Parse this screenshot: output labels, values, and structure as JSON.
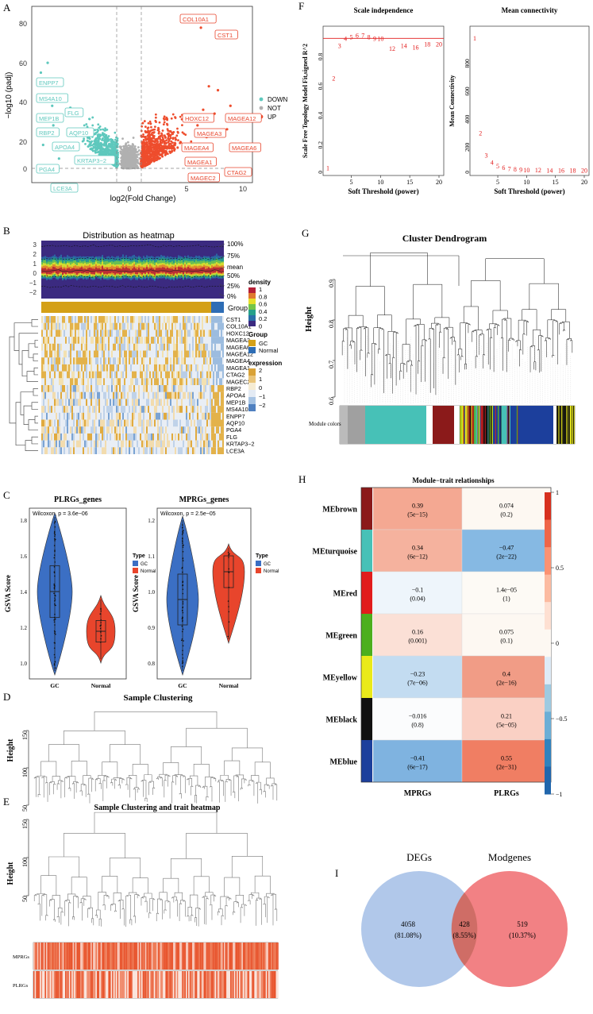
{
  "panels": {
    "A": {
      "letter": "A",
      "xlabel": "log2(Fold Change)",
      "ylabel": "−log10 (padj)",
      "legend": [
        {
          "label": "DOWN",
          "color": "#5ec8bd"
        },
        {
          "label": "NOT",
          "color": "#b0b0b0"
        },
        {
          "label": "UP",
          "color": "#ee4d2d"
        }
      ],
      "down_genes": [
        "ENPP7",
        "MS4A10",
        "FLG",
        "MEP1B",
        "RBP2",
        "AQP10",
        "APOA4",
        "KRTAP3−2",
        "PGA4",
        "LCE3A"
      ],
      "up_genes": [
        "COL10A1",
        "CST1",
        "HOXC12",
        "MAGEA12",
        "MAGEA3",
        "MAGEA4",
        "MAGEA6",
        "MAGEA1",
        "CTAG2",
        "MAGEC2"
      ]
    },
    "B": {
      "letter": "B",
      "title": "Distribution as heatmap",
      "quantiles": [
        "100%",
        "75%",
        "mean",
        "50%",
        "25%",
        "0%"
      ],
      "group_label": "Group",
      "genes": [
        "CST1",
        "COL10A1",
        "HOXC12",
        "MAGEA3",
        "MAGEA6",
        "MAGEA12",
        "MAGEA4",
        "MAGEA1",
        "CTAG2",
        "MAGEC2",
        "RBP2",
        "APOA4",
        "MEP1B",
        "MS4A10",
        "ENPP7",
        "AQP10",
        "PGA4",
        "FLG",
        "KRTAP3−2",
        "LCE3A"
      ],
      "legend_density_title": "density",
      "legend_density_ticks": [
        "1",
        "0.8",
        "0.6",
        "0.4",
        "0.2",
        "0"
      ],
      "legend_group_title": "Group",
      "legend_group_items": [
        {
          "label": "GC",
          "color": "#d4a017"
        },
        {
          "label": "Normal",
          "color": "#2e6db5"
        }
      ],
      "legend_expr_title": "expression",
      "legend_expr_ticks": [
        "2",
        "1",
        "0",
        "−1",
        "−2"
      ]
    },
    "C": {
      "letter": "C",
      "plots": [
        {
          "title": "PLRGs_genes",
          "stat": "Wilcoxon, p = 3.6e−06",
          "ylabel": "GSVA Score",
          "yticks": [
            "1.8",
            "1.6",
            "1.4",
            "1.2",
            "1.0"
          ],
          "xcats": [
            "GC",
            "Normal"
          ]
        },
        {
          "title": "MPRGs_genes",
          "stat": "Wilcoxon, p = 2.5e−05",
          "ylabel": "GSVA Score",
          "yticks": [
            "1.2",
            "1.1",
            "1.0",
            "0.9",
            "0.8"
          ],
          "xcats": [
            "GC",
            "Normal"
          ]
        }
      ],
      "legend_title": "Type",
      "legend_items": [
        {
          "label": "GC",
          "color": "#3b6fc4"
        },
        {
          "label": "Normal",
          "color": "#e8452c"
        }
      ]
    },
    "D": {
      "letter": "D",
      "title": "Sample Clustering",
      "ylabel": "Height",
      "yticks": [
        "150",
        "100",
        "50"
      ]
    },
    "E": {
      "letter": "E",
      "title": "Sample Clustering and trait heatmap",
      "ylabel": "Height",
      "yticks": [
        "150",
        "100",
        "50"
      ],
      "traits": [
        "MPRGs",
        "PLRGs"
      ]
    },
    "F": {
      "letter": "F",
      "left": {
        "title": "Scale independence",
        "ylabel": "Scale Free Topology Model Fit,signed R^2",
        "xlabel": "Soft Threshold (power)",
        "yticks": [
          "0",
          "0.2",
          "0.4",
          "0.6",
          "0.8"
        ],
        "xticks": [
          "5",
          "10",
          "15",
          "20"
        ]
      },
      "right": {
        "title": "Mean connectivity",
        "ylabel": "Mean Connectivity",
        "xlabel": "Soft Threshold (power)",
        "yticks": [
          "0",
          "200",
          "400",
          "600",
          "800"
        ],
        "xticks": [
          "5",
          "10",
          "15",
          "20"
        ]
      },
      "powers": [
        "1",
        "2",
        "3",
        "4",
        "5",
        "6",
        "7",
        "8",
        "9",
        "10",
        "12",
        "14",
        "16",
        "18",
        "20"
      ],
      "power_values": [
        1,
        2,
        3,
        4,
        5,
        6,
        7,
        8,
        9,
        10,
        12,
        14,
        16,
        18,
        20
      ],
      "r2_values": [
        0.02,
        0.63,
        0.85,
        0.9,
        0.91,
        0.92,
        0.92,
        0.91,
        0.9,
        0.9,
        0.83,
        0.85,
        0.84,
        0.86,
        0.86
      ],
      "mean_conn_values": [
        950,
        270,
        110,
        60,
        35,
        22,
        15,
        11,
        9,
        7,
        5,
        4,
        3,
        2,
        2
      ]
    },
    "G": {
      "letter": "G",
      "title": "Cluster Dendrogram",
      "ylabel": "Height",
      "yticks": [
        "0.9",
        "0.8",
        "0.7",
        "0.6"
      ],
      "module_label": "Module colors"
    },
    "H": {
      "letter": "H",
      "title": "Module−trait relationships",
      "modules": [
        {
          "name": "MEbrown",
          "color": "#8b1a1a",
          "mprgs": "0.39",
          "mprgs_p": "(5e−15)",
          "plrgs": "0.074",
          "plrgs_p": "(0.2)"
        },
        {
          "name": "MEturquoise",
          "color": "#47c1b7",
          "mprgs": "0.34",
          "mprgs_p": "(6e−12)",
          "plrgs": "−0.47",
          "plrgs_p": "(2e−22)"
        },
        {
          "name": "MEred",
          "color": "#e11c1c",
          "mprgs": "−0.1",
          "mprgs_p": "(0.04)",
          "plrgs": "1.4e−05",
          "plrgs_p": "(1)"
        },
        {
          "name": "MEgreen",
          "color": "#4caf1e",
          "mprgs": "0.16",
          "mprgs_p": "(0.001)",
          "plrgs": "0.075",
          "plrgs_p": "(0.1)"
        },
        {
          "name": "MEyellow",
          "color": "#eaea1a",
          "mprgs": "−0.23",
          "mprgs_p": "(7e−06)",
          "plrgs": "0.4",
          "plrgs_p": "(2e−16)"
        },
        {
          "name": "MEblack",
          "color": "#111111",
          "mprgs": "−0.016",
          "mprgs_p": "(0.8)",
          "plrgs": "0.21",
          "plrgs_p": "(5e−05)"
        },
        {
          "name": "MEblue",
          "color": "#1c3f9c",
          "mprgs": "−0.41",
          "mprgs_p": "(6e−17)",
          "plrgs": "0.55",
          "plrgs_p": "(2e−31)"
        }
      ],
      "columns": [
        "MPRGs",
        "PLRGs"
      ],
      "scale_ticks": [
        "1",
        "0.5",
        "0",
        "−0.5",
        "−1"
      ],
      "cell_colors": [
        [
          "#f4a892",
          "#fdf8f2"
        ],
        [
          "#f5b29e",
          "#86b9e3"
        ],
        [
          "#eef5fb",
          "#fdfaf5"
        ],
        [
          "#fbe0d6",
          "#fdf8f2"
        ],
        [
          "#c3dcf1",
          "#f19c86"
        ],
        [
          "#fbfcfd",
          "#fad0c4"
        ],
        [
          "#7fb3e0",
          "#f07e63"
        ]
      ]
    },
    "I": {
      "letter": "I",
      "sets": [
        "DEGs",
        "Modgenes"
      ],
      "left_count": "4058",
      "left_pct": "(81.08%)",
      "mid_count": "428",
      "mid_pct": "(8.55%)",
      "right_count": "519",
      "right_pct": "(10.37%)",
      "left_color": "#a9c2e8",
      "right_color": "#f06b6e"
    }
  }
}
